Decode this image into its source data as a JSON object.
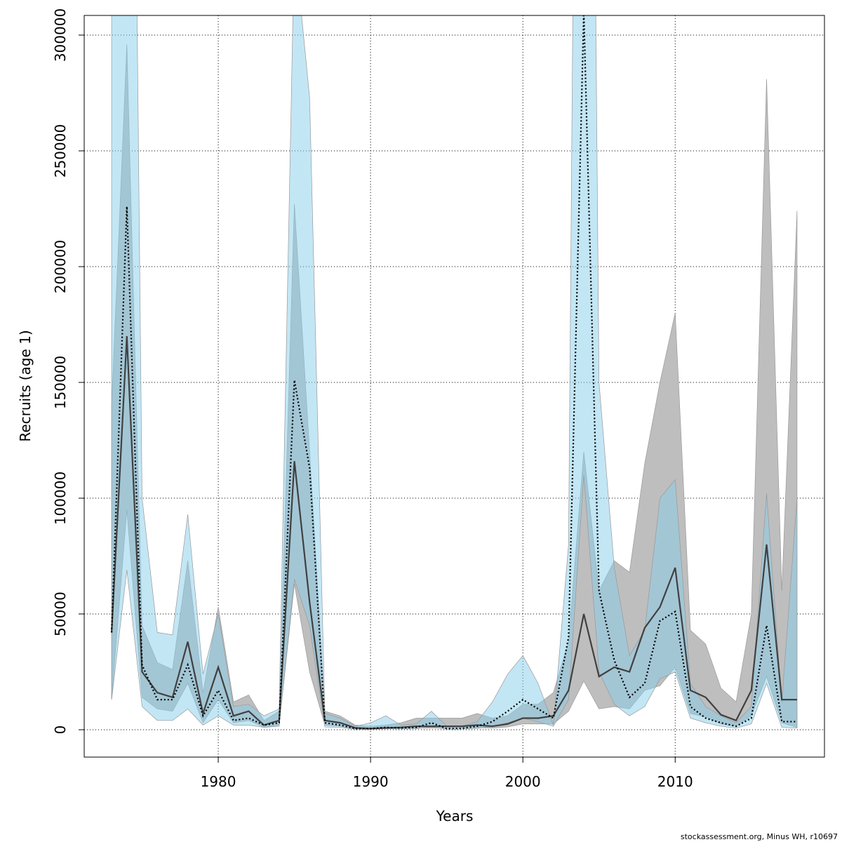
{
  "chart_data": {
    "type": "line",
    "x_label": "Years",
    "y_label": "Recruits (age 1)",
    "credit": "stockassessment.org, Minus WH, r10697",
    "x": [
      1973,
      1974,
      1975,
      1976,
      1977,
      1978,
      1979,
      1980,
      1981,
      1982,
      1983,
      1984,
      1985,
      1986,
      1987,
      1988,
      1989,
      1990,
      1991,
      1992,
      1993,
      1994,
      1995,
      1996,
      1997,
      1998,
      1999,
      2000,
      2001,
      2002,
      2003,
      2004,
      2005,
      2006,
      2007,
      2008,
      2009,
      2010,
      2011,
      2012,
      2013,
      2014,
      2015,
      2016,
      2017,
      2018
    ],
    "series": [
      {
        "color": "#404040",
        "band_color": "#bebebe",
        "dash": "solid",
        "values": [
          42000,
          170000,
          25000,
          16000,
          14000,
          38000,
          7000,
          27000,
          6000,
          8000,
          2000,
          4000,
          116000,
          55000,
          4000,
          3000,
          800,
          500,
          800,
          1000,
          1500,
          1500,
          1500,
          1500,
          2000,
          1500,
          2500,
          5000,
          5000,
          6000,
          17000,
          50000,
          23000,
          27000,
          25000,
          44000,
          53000,
          70000,
          17000,
          14000,
          6500,
          4000,
          17000,
          80000,
          13000,
          13000
        ],
        "lower": [
          13000,
          95000,
          14000,
          9000,
          8000,
          20000,
          3000,
          13000,
          3000,
          4000,
          1000,
          2000,
          63000,
          25000,
          2000,
          1500,
          300,
          200,
          400,
          500,
          700,
          700,
          700,
          700,
          900,
          700,
          1200,
          2500,
          2500,
          2500,
          8000,
          21000,
          9000,
          10000,
          9000,
          17000,
          19000,
          27000,
          7000,
          5500,
          2500,
          1500,
          6000,
          23000,
          3000,
          1000
        ],
        "upper": [
          140000,
          296000,
          45000,
          29000,
          26000,
          73000,
          16000,
          53000,
          12000,
          15000,
          4000,
          8000,
          227000,
          120000,
          8000,
          6000,
          2000,
          1500,
          2000,
          3000,
          5000,
          5000,
          5000,
          5000,
          7000,
          5000,
          6000,
          11000,
          11000,
          16000,
          38000,
          120000,
          60000,
          73000,
          68000,
          115000,
          150000,
          180000,
          43000,
          37000,
          18000,
          12000,
          50000,
          281000,
          60000,
          224000
        ]
      },
      {
        "color": "#000000",
        "band_color": "rgba(135,206,235,0.5)",
        "dash": "dotted",
        "values": [
          42000,
          226000,
          28000,
          13000,
          13000,
          28000,
          6000,
          17000,
          4000,
          5000,
          2000,
          3000,
          151000,
          113000,
          3000,
          2000,
          500,
          500,
          1000,
          800,
          1000,
          3000,
          500,
          600,
          1500,
          3500,
          8000,
          13000,
          9000,
          5000,
          40000,
          310000,
          60000,
          30000,
          14000,
          20000,
          47000,
          51000,
          10000,
          5000,
          3000,
          1500,
          5000,
          45000,
          3500,
          3500
        ],
        "lower": [
          13000,
          69000,
          10000,
          4000,
          4000,
          9000,
          2000,
          6000,
          2000,
          2000,
          1000,
          1500,
          65000,
          45000,
          1200,
          1000,
          200,
          200,
          400,
          300,
          400,
          1200,
          200,
          250,
          600,
          1400,
          3000,
          5000,
          3500,
          1500,
          13000,
          110000,
          25000,
          11000,
          6000,
          10000,
          22000,
          25000,
          5000,
          3000,
          1500,
          700,
          2500,
          20000,
          1000,
          700
        ],
        "upper": [
          350000,
          740000,
          100000,
          42000,
          41000,
          93000,
          24000,
          50000,
          10000,
          11000,
          6000,
          9000,
          340000,
          273000,
          7000,
          5000,
          1500,
          3000,
          6000,
          2000,
          2500,
          8000,
          1500,
          1500,
          3500,
          12000,
          24000,
          32000,
          20000,
          2000,
          80000,
          900000,
          150000,
          70000,
          32000,
          43000,
          100000,
          108000,
          20000,
          10000,
          6000,
          3000,
          10000,
          102000,
          12000,
          100000
        ]
      }
    ],
    "xlim": [
      1971.2,
      2019.8
    ],
    "ylim": [
      -11818,
      308485
    ],
    "xticks": [
      1980,
      1990,
      2000,
      2010
    ],
    "yticks": [
      0,
      50000,
      100000,
      150000,
      200000,
      250000,
      300000
    ],
    "grid": true
  }
}
